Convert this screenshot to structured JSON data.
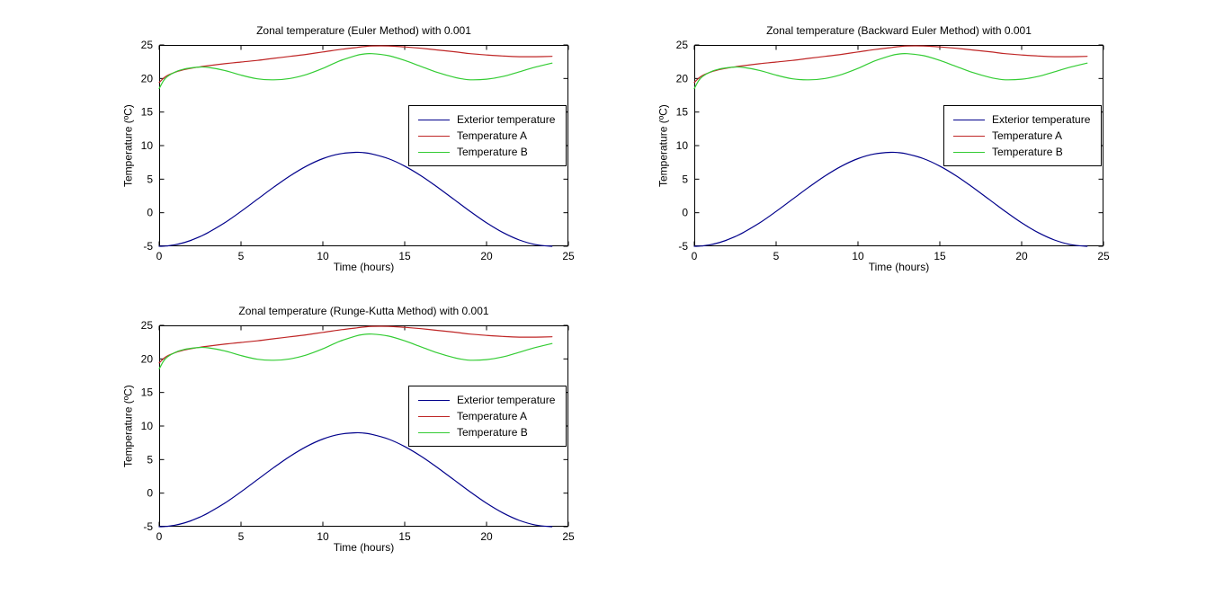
{
  "figure": {
    "background": "#FFFFFF",
    "axis_color": "#000000",
    "text_color": "#000000",
    "legend_border": "#000000",
    "legend_background": "#FFFFFF"
  },
  "chart_data": [
    {
      "type": "line",
      "title": "Zonal temperature (Euler Method) with 0.001",
      "xlabel": "Time (hours)",
      "ylabel": "Temperature (ºC)",
      "xlim": [
        0,
        25
      ],
      "ylim": [
        -5,
        25
      ],
      "xticks": [
        0,
        5,
        10,
        15,
        20,
        25
      ],
      "yticks": [
        -5,
        0,
        5,
        10,
        15,
        20,
        25
      ],
      "grid": false,
      "legend_position": "inside-upper-right",
      "x": [
        0,
        0.25,
        0.5,
        1,
        1.5,
        2,
        2.5,
        3,
        4,
        5,
        6,
        7,
        8,
        9,
        10,
        11,
        12,
        12.5,
        13,
        14,
        15,
        16,
        17,
        18,
        18.5,
        19,
        20,
        21,
        22,
        23,
        24
      ],
      "series": [
        {
          "name": "Exterior temperature",
          "color": "#00008B",
          "values": [
            -5,
            -4.99,
            -4.94,
            -4.76,
            -4.47,
            -4.06,
            -3.55,
            -2.95,
            -1.5,
            0.19,
            2,
            3.81,
            5.5,
            6.95,
            8.06,
            8.76,
            9,
            8.94,
            8.76,
            8.06,
            6.95,
            5.5,
            3.81,
            2,
            1.09,
            0.19,
            -1.5,
            -2.95,
            -4.06,
            -4.76,
            -5
          ]
        },
        {
          "name": "Temperature A",
          "color": "#BF2626",
          "values": [
            19.4,
            20.0,
            20.45,
            20.95,
            21.3,
            21.55,
            21.75,
            21.9,
            22.2,
            22.45,
            22.7,
            23.0,
            23.3,
            23.6,
            23.95,
            24.3,
            24.6,
            24.75,
            24.85,
            24.85,
            24.7,
            24.5,
            24.25,
            24.0,
            23.85,
            23.7,
            23.5,
            23.35,
            23.25,
            23.25,
            23.3
          ]
        },
        {
          "name": "Temperature B",
          "color": "#33CC33",
          "values": [
            18.5,
            19.6,
            20.3,
            21.0,
            21.4,
            21.6,
            21.7,
            21.65,
            21.2,
            20.5,
            19.95,
            19.8,
            20.0,
            20.6,
            21.5,
            22.6,
            23.4,
            23.65,
            23.7,
            23.4,
            22.7,
            21.8,
            20.9,
            20.2,
            19.95,
            19.8,
            19.9,
            20.3,
            21.0,
            21.7,
            22.3
          ]
        }
      ]
    },
    {
      "type": "line",
      "title": "Zonal temperature (Backward Euler Method) with 0.001",
      "xlabel": "Time (hours)",
      "ylabel": "Temperature (ºC)",
      "xlim": [
        0,
        25
      ],
      "ylim": [
        -5,
        25
      ],
      "xticks": [
        0,
        5,
        10,
        15,
        20,
        25
      ],
      "yticks": [
        -5,
        0,
        5,
        10,
        15,
        20,
        25
      ],
      "grid": false,
      "legend_position": "inside-upper-right",
      "x": [
        0,
        0.25,
        0.5,
        1,
        1.5,
        2,
        2.5,
        3,
        4,
        5,
        6,
        7,
        8,
        9,
        10,
        11,
        12,
        12.5,
        13,
        14,
        15,
        16,
        17,
        18,
        18.5,
        19,
        20,
        21,
        22,
        23,
        24
      ],
      "series": [
        {
          "name": "Exterior temperature",
          "color": "#00008B",
          "values": [
            -5,
            -4.99,
            -4.94,
            -4.76,
            -4.47,
            -4.06,
            -3.55,
            -2.95,
            -1.5,
            0.19,
            2,
            3.81,
            5.5,
            6.95,
            8.06,
            8.76,
            9,
            8.94,
            8.76,
            8.06,
            6.95,
            5.5,
            3.81,
            2,
            1.09,
            0.19,
            -1.5,
            -2.95,
            -4.06,
            -4.76,
            -5
          ]
        },
        {
          "name": "Temperature A",
          "color": "#BF2626",
          "values": [
            19.4,
            20.0,
            20.45,
            20.95,
            21.3,
            21.55,
            21.75,
            21.9,
            22.2,
            22.45,
            22.7,
            23.0,
            23.3,
            23.6,
            23.95,
            24.3,
            24.6,
            24.75,
            24.85,
            24.85,
            24.7,
            24.5,
            24.25,
            24.0,
            23.85,
            23.7,
            23.5,
            23.35,
            23.25,
            23.25,
            23.3
          ]
        },
        {
          "name": "Temperature B",
          "color": "#33CC33",
          "values": [
            18.5,
            19.6,
            20.3,
            21.0,
            21.4,
            21.6,
            21.7,
            21.65,
            21.2,
            20.5,
            19.95,
            19.8,
            20.0,
            20.6,
            21.5,
            22.6,
            23.4,
            23.65,
            23.7,
            23.4,
            22.7,
            21.8,
            20.9,
            20.2,
            19.95,
            19.8,
            19.9,
            20.3,
            21.0,
            21.7,
            22.3
          ]
        }
      ]
    },
    {
      "type": "line",
      "title": "Zonal temperature (Runge-Kutta Method) with 0.001",
      "xlabel": "Time (hours)",
      "ylabel": "Temperature (ºC)",
      "xlim": [
        0,
        25
      ],
      "ylim": [
        -5,
        25
      ],
      "xticks": [
        0,
        5,
        10,
        15,
        20,
        25
      ],
      "yticks": [
        -5,
        0,
        5,
        10,
        15,
        20,
        25
      ],
      "grid": false,
      "legend_position": "inside-upper-right",
      "x": [
        0,
        0.25,
        0.5,
        1,
        1.5,
        2,
        2.5,
        3,
        4,
        5,
        6,
        7,
        8,
        9,
        10,
        11,
        12,
        12.5,
        13,
        14,
        15,
        16,
        17,
        18,
        18.5,
        19,
        20,
        21,
        22,
        23,
        24
      ],
      "series": [
        {
          "name": "Exterior temperature",
          "color": "#00008B",
          "values": [
            -5,
            -4.99,
            -4.94,
            -4.76,
            -4.47,
            -4.06,
            -3.55,
            -2.95,
            -1.5,
            0.19,
            2,
            3.81,
            5.5,
            6.95,
            8.06,
            8.76,
            9,
            8.94,
            8.76,
            8.06,
            6.95,
            5.5,
            3.81,
            2,
            1.09,
            0.19,
            -1.5,
            -2.95,
            -4.06,
            -4.76,
            -5
          ]
        },
        {
          "name": "Temperature A",
          "color": "#BF2626",
          "values": [
            19.4,
            20.0,
            20.45,
            20.95,
            21.3,
            21.55,
            21.75,
            21.9,
            22.2,
            22.45,
            22.7,
            23.0,
            23.3,
            23.6,
            23.95,
            24.3,
            24.6,
            24.75,
            24.85,
            24.85,
            24.7,
            24.5,
            24.25,
            24.0,
            23.85,
            23.7,
            23.5,
            23.35,
            23.25,
            23.25,
            23.3
          ]
        },
        {
          "name": "Temperature B",
          "color": "#33CC33",
          "values": [
            18.5,
            19.6,
            20.3,
            21.0,
            21.4,
            21.6,
            21.7,
            21.65,
            21.2,
            20.5,
            19.95,
            19.8,
            20.0,
            20.6,
            21.5,
            22.6,
            23.4,
            23.65,
            23.7,
            23.4,
            22.7,
            21.8,
            20.9,
            20.2,
            19.95,
            19.8,
            19.9,
            20.3,
            21.0,
            21.7,
            22.3
          ]
        }
      ]
    }
  ]
}
